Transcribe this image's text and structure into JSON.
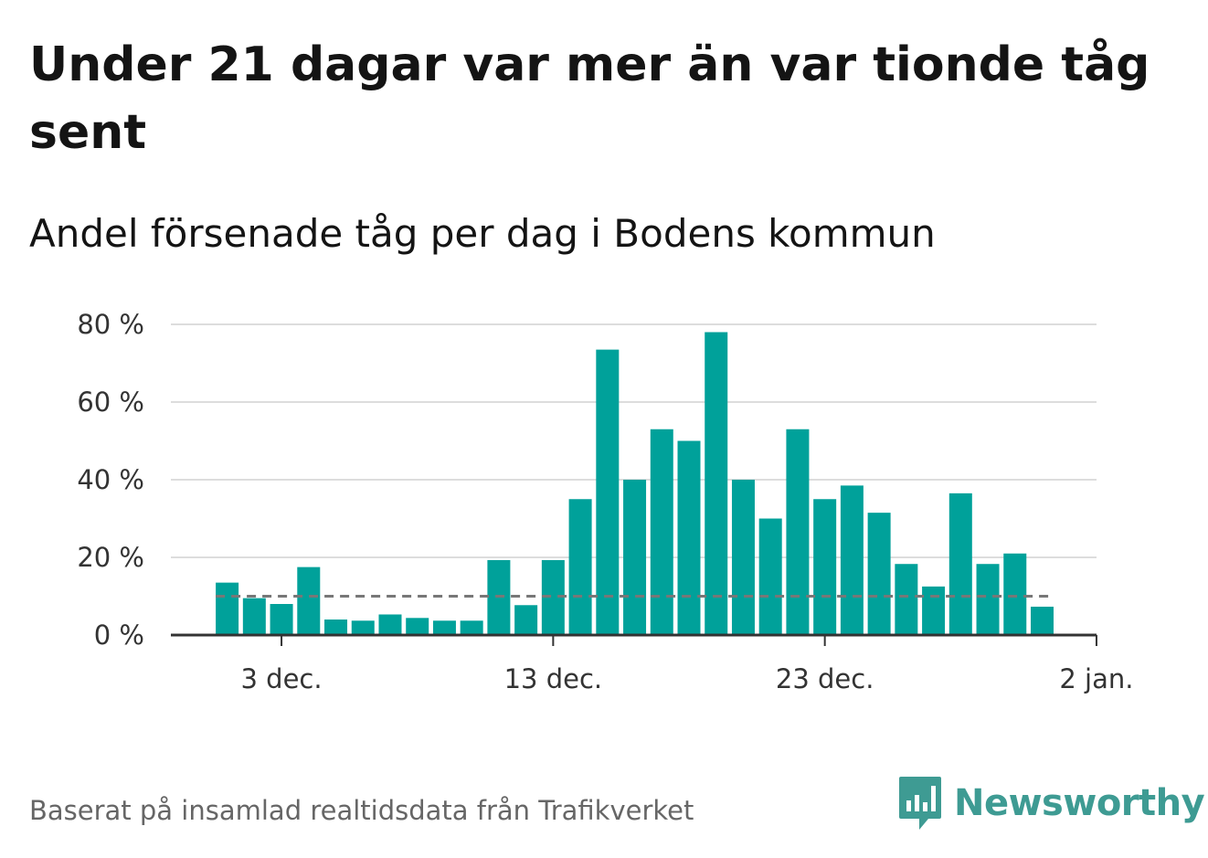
{
  "title": "Under 21 dagar var mer än var tionde tåg sent",
  "subtitle": "Andel försenade tåg per dag i Bodens kommun",
  "footer": "Baserat på insamlad realtidsdata från Trafikverket",
  "logo": {
    "text": "Newsworthy",
    "icon": "newsworthy-chart-icon"
  },
  "colors": {
    "bar": "#00a19a",
    "reference_line": "#777777",
    "grid": "#dddddd",
    "axis": "#333333"
  },
  "chart_data": {
    "type": "bar",
    "x": [
      "2023-12-01",
      "2023-12-02",
      "2023-12-03",
      "2023-12-04",
      "2023-12-05",
      "2023-12-06",
      "2023-12-07",
      "2023-12-08",
      "2023-12-09",
      "2023-12-10",
      "2023-12-11",
      "2023-12-12",
      "2023-12-13",
      "2023-12-14",
      "2023-12-15",
      "2023-12-16",
      "2023-12-17",
      "2023-12-18",
      "2023-12-19",
      "2023-12-20",
      "2023-12-21",
      "2023-12-22",
      "2023-12-23",
      "2023-12-24",
      "2023-12-25",
      "2023-12-26",
      "2023-12-27",
      "2023-12-28",
      "2023-12-29",
      "2023-12-30",
      "2023-12-31"
    ],
    "values": [
      13.5,
      9.5,
      8,
      17.5,
      4,
      3.7,
      5.3,
      4.4,
      3.7,
      3.7,
      19.3,
      7.7,
      19.3,
      35,
      73.5,
      40,
      53,
      50,
      78,
      40,
      30,
      53,
      35,
      38.5,
      31.5,
      18.3,
      12.5,
      36.5,
      18.3,
      21,
      7.3
    ],
    "reference_line": 10,
    "ylim": [
      0,
      80
    ],
    "yticks": [
      0,
      20,
      40,
      60,
      80
    ],
    "ytick_labels": [
      "0 %",
      "20 %",
      "40 %",
      "60 %",
      "80 %"
    ],
    "xticks": [
      "2023-12-03",
      "2023-12-13",
      "2023-12-23",
      "2024-01-02"
    ],
    "xtick_labels": [
      "3 dec.",
      "13 dec.",
      "23 dec.",
      "2 jan."
    ],
    "xlabel": "",
    "ylabel": "",
    "grid": true
  }
}
